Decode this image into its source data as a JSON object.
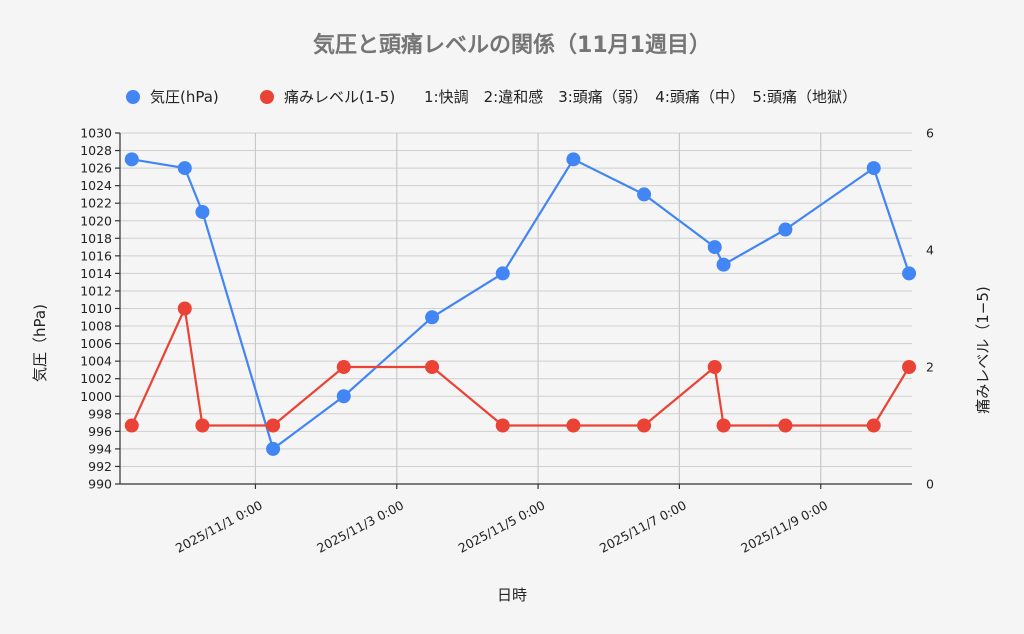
{
  "chart_data": {
    "type": "line",
    "title": "気圧と頭痛レベルの関係（11月1週目）",
    "xlabel": "日時",
    "ylabel_left": "気圧（hPa)",
    "ylabel_right": "痛みレベル（1−5)",
    "x_ticks": [
      "2025/11/1 0:00",
      "2025/11/3 0:00",
      "2025/11/5 0:00",
      "2025/11/7 0:00",
      "2025/11/9 0:00"
    ],
    "x_tick_dates": [
      "2025-11-01T00:00",
      "2025-11-03T00:00",
      "2025-11-05T00:00",
      "2025-11-07T00:00",
      "2025-11-09T00:00"
    ],
    "x_range": [
      "2025-10-30T02:00",
      "2025-11-10T07:00"
    ],
    "ylim_left": [
      990,
      1030
    ],
    "ylim_right": [
      0,
      6
    ],
    "left_ticks": [
      990,
      992,
      994,
      996,
      998,
      1000,
      1002,
      1004,
      1006,
      1008,
      1010,
      1012,
      1014,
      1016,
      1018,
      1020,
      1022,
      1024,
      1026,
      1028,
      1030
    ],
    "right_ticks": [
      0,
      2,
      4,
      6
    ],
    "legend_position": "top",
    "legend_note": "1:快調　2:違和感　3:頭痛（弱）　4:頭痛（中）　5:頭痛（地獄）",
    "series": [
      {
        "name": "気圧(hPa)",
        "axis": "left",
        "color": "#4285f4",
        "points": [
          {
            "x": "2025-10-30T06:00",
            "y": 1027
          },
          {
            "x": "2025-10-31T00:00",
            "y": 1026
          },
          {
            "x": "2025-10-31T06:00",
            "y": 1021
          },
          {
            "x": "2025-11-01T06:00",
            "y": 994
          },
          {
            "x": "2025-11-02T06:00",
            "y": 1000
          },
          {
            "x": "2025-11-03T12:00",
            "y": 1009
          },
          {
            "x": "2025-11-04T12:00",
            "y": 1014
          },
          {
            "x": "2025-11-05T12:00",
            "y": 1027
          },
          {
            "x": "2025-11-06T12:00",
            "y": 1023
          },
          {
            "x": "2025-11-07T12:00",
            "y": 1017
          },
          {
            "x": "2025-11-07T15:00",
            "y": 1015
          },
          {
            "x": "2025-11-08T12:00",
            "y": 1019
          },
          {
            "x": "2025-11-09T18:00",
            "y": 1026
          },
          {
            "x": "2025-11-10T06:00",
            "y": 1014
          }
        ]
      },
      {
        "name": "痛みレベル(1-5)",
        "axis": "right",
        "color": "#ea4335",
        "points": [
          {
            "x": "2025-10-30T06:00",
            "y": 1
          },
          {
            "x": "2025-10-31T00:00",
            "y": 3
          },
          {
            "x": "2025-10-31T06:00",
            "y": 1
          },
          {
            "x": "2025-11-01T06:00",
            "y": 1
          },
          {
            "x": "2025-11-02T06:00",
            "y": 2
          },
          {
            "x": "2025-11-03T12:00",
            "y": 2
          },
          {
            "x": "2025-11-04T12:00",
            "y": 1
          },
          {
            "x": "2025-11-05T12:00",
            "y": 1
          },
          {
            "x": "2025-11-06T12:00",
            "y": 1
          },
          {
            "x": "2025-11-07T12:00",
            "y": 2
          },
          {
            "x": "2025-11-07T15:00",
            "y": 1
          },
          {
            "x": "2025-11-08T12:00",
            "y": 1
          },
          {
            "x": "2025-11-09T18:00",
            "y": 1
          },
          {
            "x": "2025-11-10T06:00",
            "y": 2
          }
        ]
      }
    ]
  }
}
